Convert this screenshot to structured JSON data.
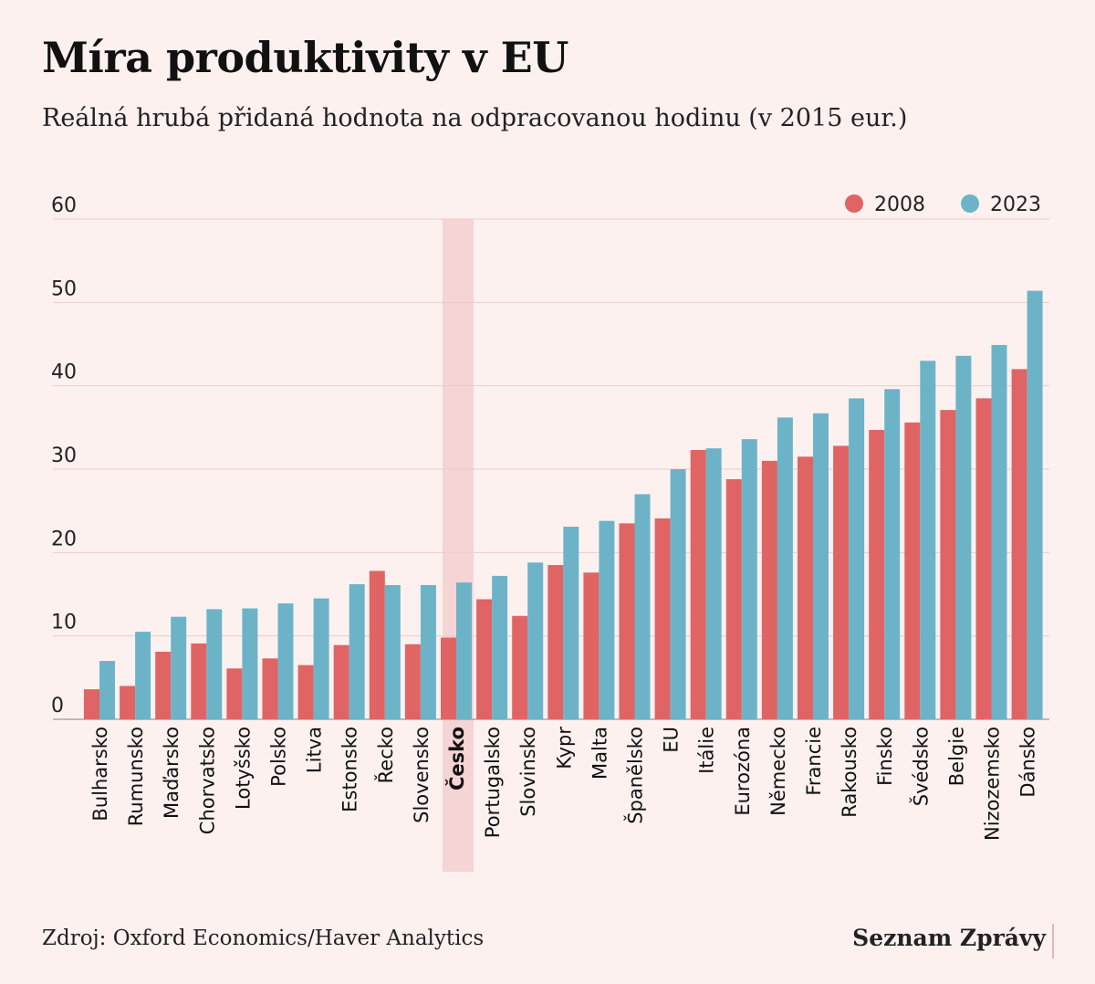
{
  "colors": {
    "series_2008": "#e06464",
    "series_2023": "#6db3c8",
    "highlight": "#f4d4d4",
    "grid": "#f0c8c8"
  },
  "chart_data": {
    "type": "bar",
    "title": "Míra produktivity v EU",
    "subtitle": "Reálná hrubá přidaná hodnota na odpracovanou hodinu (v 2015 eur.)",
    "categories": [
      "Bulharsko",
      "Rumunsko",
      "Maďarsko",
      "Chorvatsko",
      "Lotyšsko",
      "Polsko",
      "Litva",
      "Estonsko",
      "Řecko",
      "Slovensko",
      "Česko",
      "Portugalsko",
      "Slovinsko",
      "Kypr",
      "Malta",
      "Španělsko",
      "EU",
      "Itálie",
      "Eurozóna",
      "Německo",
      "Francie",
      "Rakousko",
      "Finsko",
      "Švédsko",
      "Belgie",
      "Nizozemsko",
      "Dánsko"
    ],
    "highlighted_category": "Česko",
    "series": [
      {
        "name": "2008",
        "values": [
          3.6,
          4.0,
          8.1,
          9.1,
          6.1,
          7.3,
          6.5,
          8.9,
          17.8,
          9.0,
          9.8,
          14.4,
          12.4,
          18.5,
          17.6,
          23.5,
          24.1,
          32.3,
          28.8,
          31.0,
          31.5,
          32.8,
          34.7,
          35.6,
          37.1,
          38.5,
          42.0
        ]
      },
      {
        "name": "2023",
        "values": [
          7.0,
          10.5,
          12.3,
          13.2,
          13.3,
          13.9,
          14.5,
          16.2,
          16.1,
          16.1,
          16.4,
          17.2,
          18.8,
          23.1,
          23.8,
          27.0,
          30.0,
          32.5,
          33.6,
          36.2,
          36.7,
          38.5,
          39.6,
          43.0,
          43.6,
          44.9,
          51.4
        ]
      }
    ],
    "y_ticks": [
      "0",
      "10",
      "20",
      "30",
      "40",
      "50",
      "60"
    ],
    "ylim": [
      0,
      60
    ],
    "grid": true,
    "legend_position": "top-right"
  },
  "footer": {
    "source": "Zdroj: Oxford Economics/Haver Analytics",
    "brand": "Seznam Zprávy"
  }
}
